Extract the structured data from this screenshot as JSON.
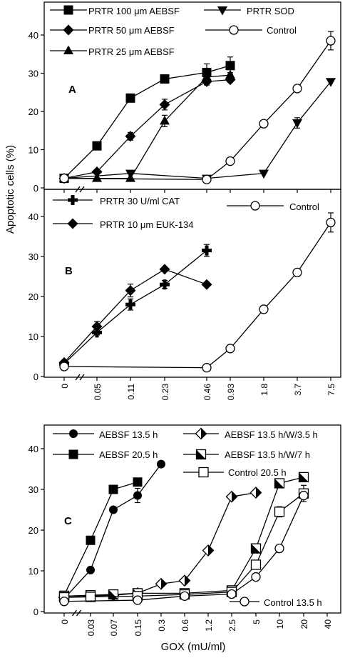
{
  "figure": {
    "ylabel": "Apoptotic cells  (%)",
    "xlabel": "GOX (mU/ml)"
  },
  "chart_data": [
    {
      "type": "line",
      "panel_label": "A",
      "ylabel": "Apoptotic cells (%)",
      "ylim": [
        0,
        45
      ],
      "yticks": [
        0,
        10,
        20,
        30,
        40
      ],
      "x_scale": "categorical (GOX, mU/ml, axis break after 0)",
      "categories": [
        "0",
        "0.05",
        "0.11",
        "0.23",
        "0.46",
        "0.93",
        "1.8",
        "3.7",
        "7.5"
      ],
      "series": [
        {
          "name": "PRTR 100 μm  AEBSF",
          "marker": "square-filled",
          "points": [
            [
              "0",
              2.5
            ],
            [
              "0.05",
              11
            ],
            [
              "0.11",
              23.5
            ],
            [
              "0.23",
              28.5
            ],
            [
              "0.46",
              30.2
            ],
            [
              "0.93",
              32
            ]
          ],
          "err": [
            0,
            1.8,
            0,
            2,
            4.5,
            4.5
          ]
        },
        {
          "name": "PRTR 50 μm  AEBSF",
          "marker": "diamond-filled",
          "points": [
            [
              "0",
              2.5
            ],
            [
              "0.05",
              4.2
            ],
            [
              "0.11",
              13.5
            ],
            [
              "0.23",
              21.8
            ],
            [
              "0.46",
              27.8
            ],
            [
              "0.93",
              28.3
            ]
          ],
          "err": [
            0,
            0,
            2,
            2.8,
            1.8,
            1.3
          ]
        },
        {
          "name": "PRTR 25 μm AEBSF",
          "marker": "triangle-up-filled",
          "points": [
            [
              "0",
              2.5
            ],
            [
              "0.05",
              2.5
            ],
            [
              "0.11",
              2.5
            ],
            [
              "0.23",
              17.5
            ],
            [
              "0.46",
              29
            ],
            [
              "0.93",
              29.5
            ]
          ],
          "err": [
            0,
            0,
            0,
            3,
            1.3,
            1.3
          ]
        },
        {
          "name": "PRTR  SOD",
          "marker": "triangle-down-filled",
          "points": [
            [
              "0",
              2.5
            ],
            [
              "0.11",
              3.8
            ],
            [
              "0.46",
              2.5
            ],
            [
              "1.8",
              3.8
            ],
            [
              "3.7",
              17
            ],
            [
              "7.5",
              27.8
            ]
          ],
          "err": [
            0,
            0,
            0,
            0,
            2.7,
            0
          ]
        },
        {
          "name": "Control",
          "marker": "circle-open",
          "points": [
            [
              "0",
              2.5
            ],
            [
              "0.46",
              2.2
            ],
            [
              "0.93",
              7
            ],
            [
              "1.8",
              16.8
            ],
            [
              "3.7",
              26
            ],
            [
              "7.5",
              38.5
            ]
          ],
          "err": [
            0,
            0,
            0,
            0,
            0,
            4.8
          ]
        }
      ]
    },
    {
      "type": "line",
      "panel_label": "B",
      "ylabel": "Apoptotic cells (%)",
      "ylim": [
        0,
        45
      ],
      "yticks": [
        0,
        10,
        20,
        30,
        40
      ],
      "xlabel": "GOX (mU/ml)",
      "x_scale": "categorical (GOX, mU/ml, axis break after 0)",
      "categories": [
        "0",
        "0.05",
        "0.11",
        "0.23",
        "0.46",
        "0.93",
        "1.8",
        "3.7",
        "7.5"
      ],
      "series": [
        {
          "name": "PRTR 30 U/ml CAT",
          "marker": "cross-bold",
          "points": [
            [
              "0",
              3.2
            ],
            [
              "0.05",
              11
            ],
            [
              "0.11",
              18
            ],
            [
              "0.23",
              23
            ],
            [
              "0.46",
              31.5
            ]
          ],
          "err": [
            0,
            1.2,
            2.8,
            2,
            3
          ]
        },
        {
          "name": "PRTR 10 μm  EUK-134",
          "marker": "diamond-filled",
          "points": [
            [
              "0",
              3.5
            ],
            [
              "0.05",
              12.5
            ],
            [
              "0.11",
              21.5
            ],
            [
              "0.23",
              26.8
            ],
            [
              "0.46",
              23
            ]
          ],
          "err": [
            0,
            2.5,
            3.2,
            0,
            0
          ]
        },
        {
          "name": "Control",
          "marker": "circle-open",
          "points": [
            [
              "0",
              2.5
            ],
            [
              "0.46",
              2.2
            ],
            [
              "0.93",
              7
            ],
            [
              "1.8",
              16.8
            ],
            [
              "3.7",
              26
            ],
            [
              "7.5",
              38.5
            ]
          ],
          "err": [
            0,
            0,
            0,
            0,
            0,
            4.8
          ]
        }
      ]
    },
    {
      "type": "line",
      "panel_label": "C",
      "ylabel": "Apoptotic cells (%)",
      "ylim": [
        0,
        45
      ],
      "yticks": [
        0,
        10,
        20,
        30,
        40
      ],
      "xlabel": "GOX (mU/ml)",
      "x_scale": "categorical (GOX, mU/ml, axis break after 0)",
      "categories": [
        "0",
        "0.03",
        "0.07",
        "0.15",
        "0.3",
        "0.6",
        "1.2",
        "2.5",
        "5",
        "10",
        "20",
        "40"
      ],
      "series": [
        {
          "name": "AEBSF 13.5 h",
          "marker": "circle-filled",
          "points": [
            [
              "0",
              3.2
            ],
            [
              "0.03",
              10.2
            ],
            [
              "0.07",
              25
            ],
            [
              "0.15",
              28.5
            ],
            [
              "0.3",
              36.2
            ]
          ],
          "err": [
            0,
            0,
            0,
            3.5,
            0
          ]
        },
        {
          "name": "AEBSF 20.5 h",
          "marker": "square-filled",
          "points": [
            [
              "0",
              4
            ],
            [
              "0.03",
              17.5
            ],
            [
              "0.07",
              30
            ],
            [
              "0.15",
              31.8
            ]
          ],
          "err": [
            0,
            0,
            0,
            0
          ]
        },
        {
          "name": "AEBSF 13.5 h/W/3.5 h",
          "marker": "diamond-half",
          "points": [
            [
              "0",
              3.5
            ],
            [
              "0.03",
              3.8
            ],
            [
              "0.07",
              4
            ],
            [
              "0.15",
              4.5
            ],
            [
              "0.3",
              6.8
            ],
            [
              "0.6",
              7.6
            ],
            [
              "1.2",
              15
            ],
            [
              "2.5",
              28.2
            ],
            [
              "5",
              29.2
            ]
          ],
          "err": [
            0,
            0,
            0,
            0,
            0,
            0,
            0,
            0,
            0
          ]
        },
        {
          "name": "AEBSF 13.5 h/W/7 h",
          "marker": "square-half",
          "points": [
            [
              "0",
              3.8
            ],
            [
              "0.03",
              4
            ],
            [
              "0.07",
              4.2
            ],
            [
              "0.15",
              4.5
            ],
            [
              "0.6",
              4.5
            ],
            [
              "2.5",
              5.2
            ],
            [
              "5",
              15.5
            ],
            [
              "10",
              31.5
            ],
            [
              "20",
              33
            ]
          ],
          "err": [
            0,
            0,
            0,
            0,
            0,
            0,
            0,
            2,
            2
          ]
        },
        {
          "name": "Control 20.5 h",
          "marker": "square-open",
          "points": [
            [
              "0",
              3.5
            ],
            [
              "0.03",
              3.6
            ],
            [
              "0.15",
              3.8
            ],
            [
              "0.6",
              4.2
            ],
            [
              "2.5",
              4.8
            ],
            [
              "5",
              11.5
            ],
            [
              "10",
              24.5
            ],
            [
              "20",
              29
            ]
          ],
          "err": [
            0,
            0,
            0,
            0,
            0,
            0,
            2.5,
            4
          ]
        },
        {
          "name": "Control 13.5 h",
          "marker": "circle-open",
          "points": [
            [
              "0",
              2.5
            ],
            [
              "0.15",
              2.8
            ],
            [
              "0.6",
              3.8
            ],
            [
              "2.5",
              4.3
            ],
            [
              "5",
              8.5
            ],
            [
              "10",
              15.5
            ],
            [
              "20",
              28.5
            ]
          ],
          "err": [
            0,
            0,
            0,
            0,
            0,
            0,
            0
          ]
        }
      ]
    }
  ]
}
